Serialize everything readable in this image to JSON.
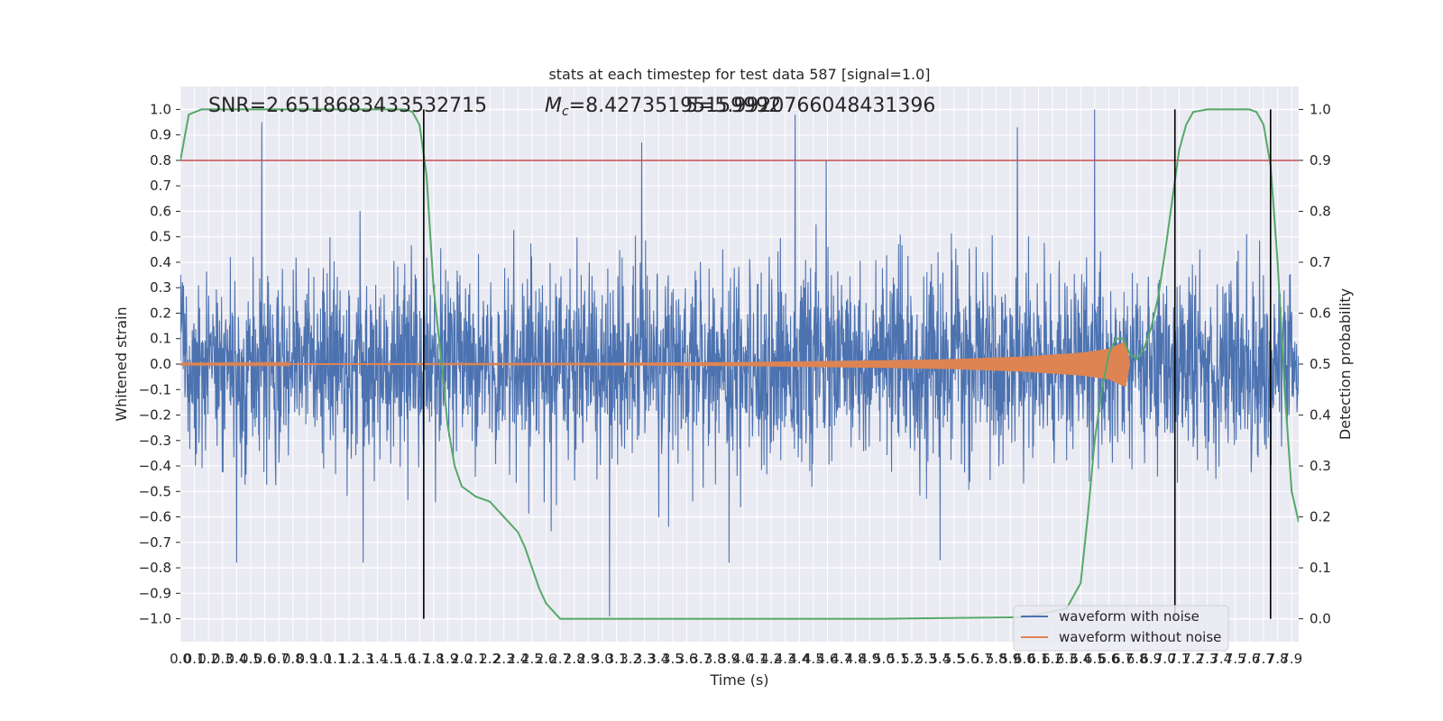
{
  "chart_data": {
    "type": "line",
    "title": "stats at each timestep for test data 587 [signal=1.0]",
    "xlabel": "Time (s)",
    "ylabel": "Whitened strain",
    "y2label": "Detection probability",
    "xlim": [
      0.0,
      7.95
    ],
    "ylim": [
      -1.09,
      1.09
    ],
    "y2lim": [
      -0.045,
      1.045
    ],
    "x_ticks": [
      0.0,
      0.1,
      0.2,
      0.3,
      0.4,
      0.5,
      0.6,
      0.7,
      0.8,
      0.9,
      1.0,
      1.1,
      1.2,
      1.3,
      1.4,
      1.5,
      1.6,
      1.7,
      1.8,
      1.9,
      2.0,
      2.1,
      2.2,
      2.3,
      2.4,
      2.5,
      2.6,
      2.7,
      2.8,
      2.9,
      3.0,
      3.1,
      3.2,
      3.3,
      3.4,
      3.5,
      3.6,
      3.7,
      3.8,
      3.9,
      4.0,
      4.1,
      4.2,
      4.3,
      4.4,
      4.5,
      4.6,
      4.7,
      4.8,
      4.9,
      5.0,
      5.1,
      5.2,
      5.3,
      5.4,
      5.5,
      5.6,
      5.7,
      5.8,
      5.9,
      6.0,
      6.1,
      6.2,
      6.3,
      6.4,
      6.5,
      6.6,
      6.7,
      6.8,
      6.9,
      7.0,
      7.1,
      7.2,
      7.3,
      7.4,
      7.5,
      7.6,
      7.7,
      7.8,
      7.9
    ],
    "y_ticks": [
      -1.0,
      -0.9,
      -0.8,
      -0.7,
      -0.6,
      -0.5,
      -0.4,
      -0.3,
      -0.2,
      -0.1,
      0.0,
      0.1,
      0.2,
      0.3,
      0.4,
      0.5,
      0.6,
      0.7,
      0.8,
      0.9,
      1.0
    ],
    "y2_ticks": [
      0.0,
      0.1,
      0.2,
      0.3,
      0.4,
      0.5,
      0.6,
      0.7,
      0.8,
      0.9,
      1.0
    ],
    "annotations": {
      "snr": "SNR=2.6518683433532715",
      "mc": "=8.42735195159992",
      "mc_symbol": "M",
      "mc_sub": "c",
      "overlap": "5=5.9920766048431396"
    },
    "threshold_y2": 0.9,
    "vertical_lines_x": [
      1.73,
      7.07,
      7.75
    ],
    "legend": {
      "placement": "lower-right",
      "entries": [
        "waveform with noise",
        "waveform without noise"
      ]
    },
    "colors": {
      "noise": "#4c72b0",
      "clean": "#dd8452",
      "probability": "#55a868",
      "threshold": "#c44e52",
      "vline": "#000000",
      "plot_bg": "#eaeaf2",
      "grid": "#ffffff"
    },
    "series": [
      {
        "name": "waveform with noise",
        "axis": "left",
        "typical_amplitude": 0.4,
        "peaks": [
          {
            "x": 0.58,
            "y": 0.95
          },
          {
            "x": 3.28,
            "y": 0.87
          },
          {
            "x": 4.37,
            "y": 0.98
          },
          {
            "x": 4.59,
            "y": 0.8
          },
          {
            "x": 5.95,
            "y": 0.93
          },
          {
            "x": 6.5,
            "y": 1.0
          },
          {
            "x": 3.05,
            "y": -0.99
          },
          {
            "x": 1.3,
            "y": -0.78
          },
          {
            "x": 0.4,
            "y": -0.78
          },
          {
            "x": 3.9,
            "y": -0.78
          },
          {
            "x": 5.4,
            "y": -0.77
          }
        ]
      },
      {
        "name": "waveform without noise",
        "axis": "left",
        "envelope": [
          [
            0.0,
            0.002
          ],
          [
            3.0,
            0.005
          ],
          [
            4.0,
            0.008
          ],
          [
            5.0,
            0.015
          ],
          [
            5.5,
            0.02
          ],
          [
            6.0,
            0.03
          ],
          [
            6.4,
            0.045
          ],
          [
            6.6,
            0.06
          ],
          [
            6.72,
            0.09
          ],
          [
            6.75,
            0.0
          ]
        ]
      },
      {
        "name": "Detection probability",
        "axis": "right",
        "x": [
          0.0,
          0.06,
          0.15,
          0.3,
          0.5,
          1.0,
          1.5,
          1.6,
          1.65,
          1.7,
          1.75,
          1.8,
          1.85,
          1.9,
          1.95,
          2.0,
          2.1,
          2.2,
          2.3,
          2.4,
          2.45,
          2.5,
          2.55,
          2.6,
          2.7,
          3.0,
          3.5,
          4.0,
          5.0,
          6.0,
          6.3,
          6.4,
          6.45,
          6.5,
          6.55,
          6.6,
          6.65,
          6.7,
          6.75,
          6.8,
          6.85,
          6.9,
          6.95,
          7.0,
          7.05,
          7.1,
          7.15,
          7.2,
          7.3,
          7.4,
          7.6,
          7.65,
          7.7,
          7.75,
          7.8,
          7.85,
          7.9,
          7.95
        ],
        "values": [
          0.9,
          0.99,
          1.0,
          1.0,
          1.0,
          1.0,
          1.0,
          1.0,
          0.995,
          0.97,
          0.87,
          0.65,
          0.52,
          0.38,
          0.3,
          0.26,
          0.24,
          0.23,
          0.2,
          0.17,
          0.14,
          0.1,
          0.06,
          0.03,
          0.0,
          0.0,
          0.0,
          0.0,
          0.0,
          0.003,
          0.02,
          0.07,
          0.2,
          0.35,
          0.45,
          0.52,
          0.55,
          0.55,
          0.52,
          0.51,
          0.53,
          0.57,
          0.63,
          0.72,
          0.82,
          0.92,
          0.97,
          0.995,
          1.0,
          1.0,
          1.0,
          0.995,
          0.97,
          0.89,
          0.7,
          0.45,
          0.25,
          0.19
        ]
      }
    ]
  }
}
